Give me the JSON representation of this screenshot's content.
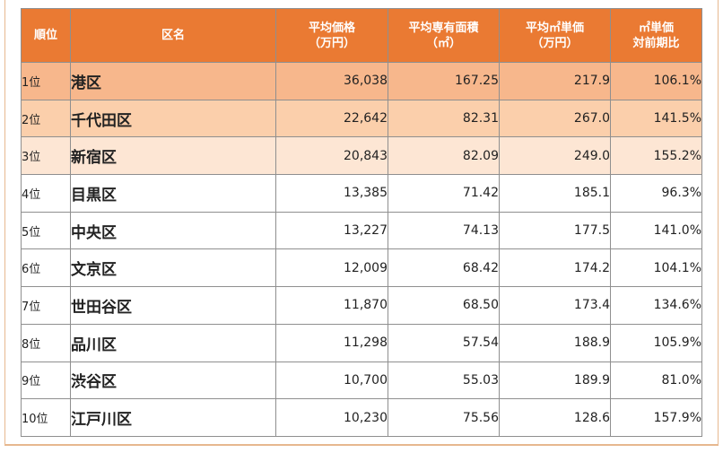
{
  "table": {
    "headers": [
      {
        "line1": "順位",
        "line2": ""
      },
      {
        "line1": "区名",
        "line2": ""
      },
      {
        "line1": "平均価格",
        "line2": "（万円）"
      },
      {
        "line1": "平均専有面積",
        "line2": "（㎡）"
      },
      {
        "line1": "平均㎡単価",
        "line2": "（万円）"
      },
      {
        "line1": "㎡単価",
        "line2": "対前期比"
      }
    ],
    "rows": [
      {
        "rank": "1位",
        "ward": "港区",
        "avg_price": "36,038",
        "avg_area": "167.25",
        "unit_price": "217.9",
        "yoy": "106.1%"
      },
      {
        "rank": "2位",
        "ward": "千代田区",
        "avg_price": "22,642",
        "avg_area": "82.31",
        "unit_price": "267.0",
        "yoy": "141.5%"
      },
      {
        "rank": "3位",
        "ward": "新宿区",
        "avg_price": "20,843",
        "avg_area": "82.09",
        "unit_price": "249.0",
        "yoy": "155.2%"
      },
      {
        "rank": "4位",
        "ward": "目黒区",
        "avg_price": "13,385",
        "avg_area": "71.42",
        "unit_price": "185.1",
        "yoy": "96.3%"
      },
      {
        "rank": "5位",
        "ward": "中央区",
        "avg_price": "13,227",
        "avg_area": "74.13",
        "unit_price": "177.5",
        "yoy": "141.0%"
      },
      {
        "rank": "6位",
        "ward": "文京区",
        "avg_price": "12,009",
        "avg_area": "68.42",
        "unit_price": "174.2",
        "yoy": "104.1%"
      },
      {
        "rank": "7位",
        "ward": "世田谷区",
        "avg_price": "11,870",
        "avg_area": "68.50",
        "unit_price": "173.4",
        "yoy": "134.6%"
      },
      {
        "rank": "8位",
        "ward": "品川区",
        "avg_price": "11,298",
        "avg_area": "57.54",
        "unit_price": "188.9",
        "yoy": "105.9%"
      },
      {
        "rank": "9位",
        "ward": "渋谷区",
        "avg_price": "10,700",
        "avg_area": "55.03",
        "unit_price": "189.9",
        "yoy": "81.0%"
      },
      {
        "rank": "10位",
        "ward": "江戸川区",
        "avg_price": "10,230",
        "avg_area": "75.56",
        "unit_price": "128.6",
        "yoy": "157.9%"
      }
    ],
    "colors": {
      "header_bg": "#ea7a33",
      "rank1_bg": "#f7b78c",
      "rank2_bg": "#fbcfab",
      "rank3_bg": "#fde6d4",
      "frame": "#e7b88f"
    }
  }
}
